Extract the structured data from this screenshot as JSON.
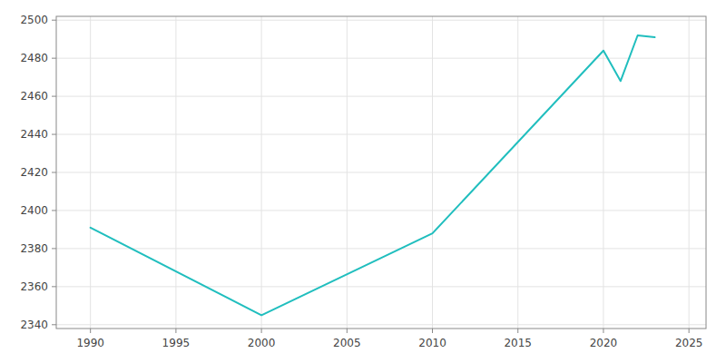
{
  "chart_data": {
    "type": "line",
    "x": [
      1990,
      2000,
      2010,
      2020,
      2021,
      2022,
      2023
    ],
    "values": [
      2391,
      2345,
      2388,
      2484,
      2468,
      2492,
      2491
    ],
    "color": "#20BEBE",
    "xlim": [
      1988,
      2026
    ],
    "ylim": [
      2338,
      2502
    ],
    "xticks": [
      1990,
      1995,
      2000,
      2005,
      2010,
      2015,
      2020,
      2025
    ],
    "yticks": [
      2340,
      2360,
      2380,
      2400,
      2420,
      2440,
      2460,
      2480,
      2500
    ],
    "grid": true
  }
}
